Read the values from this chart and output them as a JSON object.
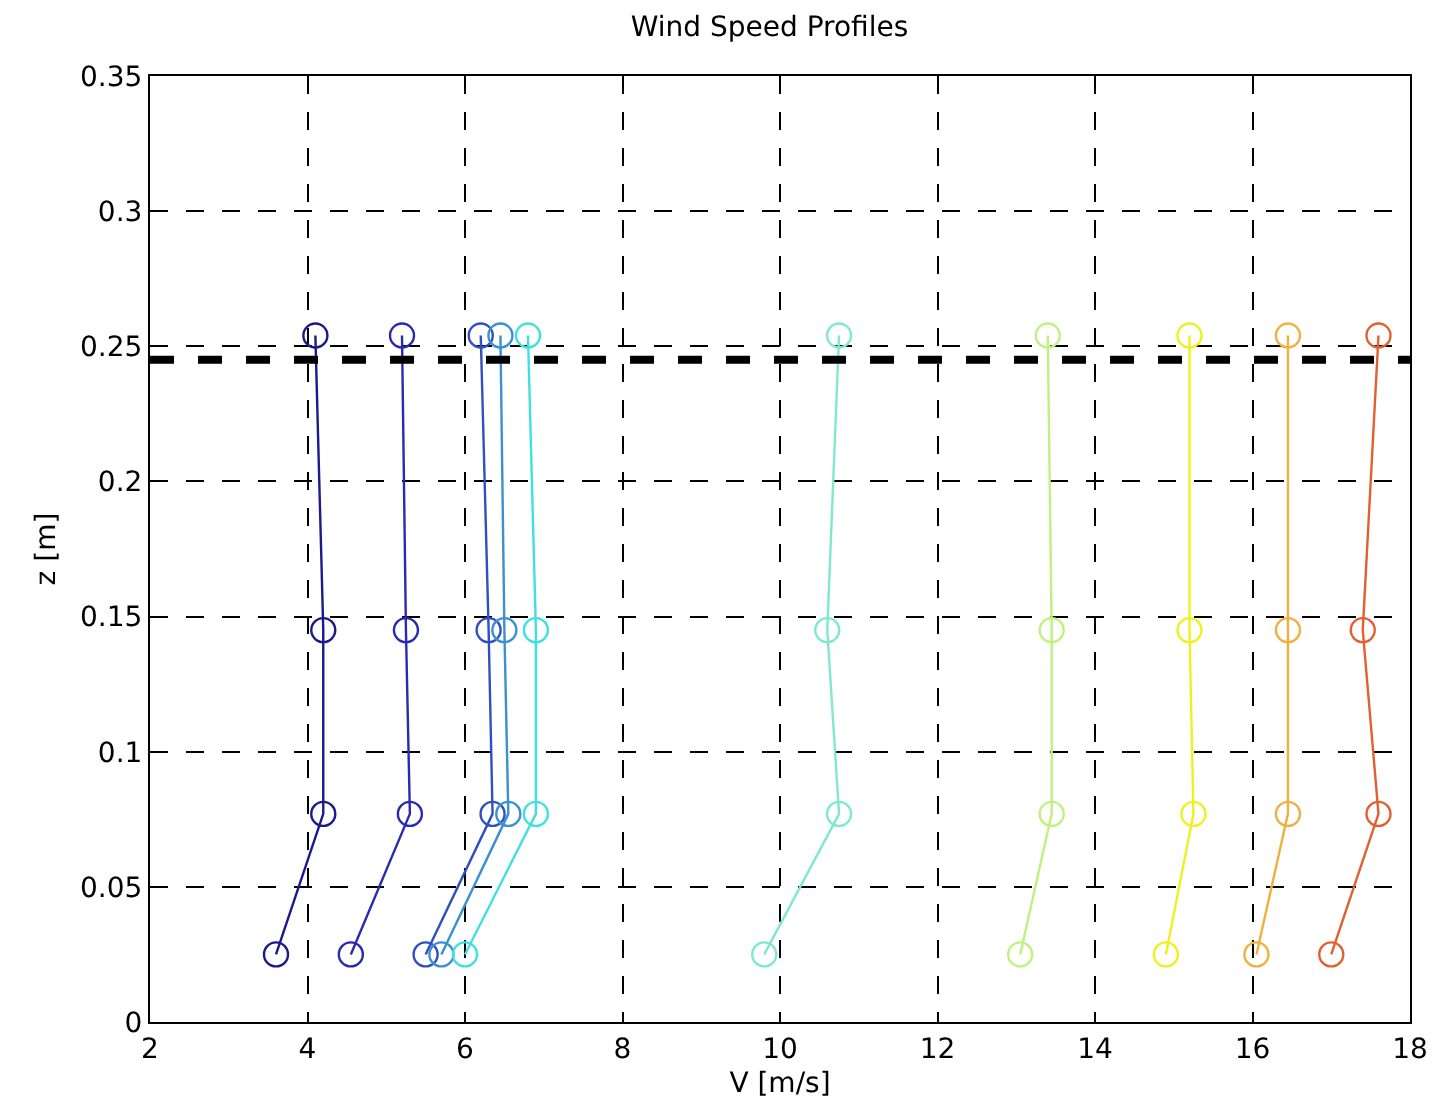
{
  "chart_data": {
    "type": "line",
    "title": "Wind Speed Profiles",
    "xlabel": "V [m/s]",
    "ylabel": "z [m]",
    "xlim": [
      2,
      18
    ],
    "xticks": [
      2,
      4,
      6,
      8,
      10,
      12,
      14,
      16,
      18
    ],
    "ylim": [
      0,
      0.35
    ],
    "yticks": [
      0,
      0.05,
      0.1,
      0.15,
      0.2,
      0.25,
      0.3,
      0.35
    ],
    "grid": true,
    "marker": "circle",
    "line_style": "solid",
    "series": [
      {
        "color": "#1a1a8c",
        "x": [
          3.6,
          4.2,
          4.2,
          4.1
        ],
        "values": [
          0.025,
          0.077,
          0.145,
          0.254
        ]
      },
      {
        "color": "#2a2ab0",
        "x": [
          4.55,
          5.3,
          5.25,
          5.2
        ],
        "values": [
          0.025,
          0.077,
          0.145,
          0.254
        ]
      },
      {
        "color": "#3050c0",
        "x": [
          5.5,
          6.35,
          6.3,
          6.2
        ],
        "values": [
          0.025,
          0.077,
          0.145,
          0.254
        ]
      },
      {
        "color": "#3a90d0",
        "x": [
          5.7,
          6.55,
          6.5,
          6.45
        ],
        "values": [
          0.025,
          0.077,
          0.145,
          0.254
        ]
      },
      {
        "color": "#40e0e0",
        "x": [
          6.0,
          6.9,
          6.9,
          6.8
        ],
        "values": [
          0.025,
          0.077,
          0.145,
          0.254
        ]
      },
      {
        "color": "#80e8d0",
        "x": [
          9.8,
          10.75,
          10.6,
          10.75
        ],
        "values": [
          0.025,
          0.077,
          0.145,
          0.254
        ]
      },
      {
        "color": "#c0f080",
        "x": [
          13.05,
          13.45,
          13.45,
          13.4
        ],
        "values": [
          0.025,
          0.077,
          0.145,
          0.254
        ]
      },
      {
        "color": "#f0f020",
        "x": [
          14.9,
          15.25,
          15.2,
          15.2
        ],
        "values": [
          0.025,
          0.077,
          0.145,
          0.254
        ]
      },
      {
        "color": "#f0b040",
        "x": [
          16.05,
          16.45,
          16.45,
          16.45
        ],
        "values": [
          0.025,
          0.077,
          0.145,
          0.254
        ]
      },
      {
        "color": "#e06030",
        "x": [
          17.0,
          17.6,
          17.4,
          17.6
        ],
        "values": [
          0.025,
          0.077,
          0.145,
          0.254
        ]
      }
    ],
    "ref_lines": [
      {
        "axis": "y",
        "value": 0.245,
        "color": "#000000",
        "line_style": "dashed"
      }
    ]
  }
}
